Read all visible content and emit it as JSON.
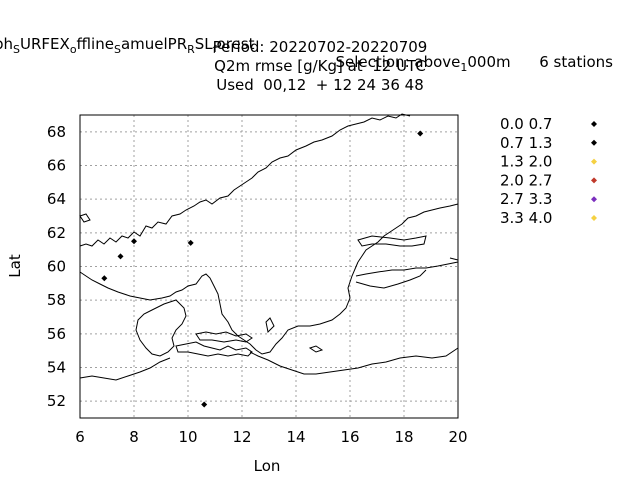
{
  "title": {
    "line1_left": "ph",
    "line1_run": "SURFEX",
    "line1_parts": [
      {
        "t": "ph",
        "sub": false
      },
      {
        "t": "S",
        "sub": true
      },
      {
        "t": "URFEX",
        "sub": false
      },
      {
        "t": "o",
        "sub": true
      },
      {
        "t": "ffline",
        "sub": false
      },
      {
        "t": "S",
        "sub": true
      },
      {
        "t": "amuelPR",
        "sub": false
      },
      {
        "t": "R",
        "sub": true
      },
      {
        "t": "SL",
        "sub": false
      },
      {
        "t": "f",
        "sub": true
      },
      {
        "t": "orest",
        "sub": false
      }
    ],
    "selection_parts": [
      {
        "t": "Selection: above",
        "sub": false
      },
      {
        "t": "1",
        "sub": true
      },
      {
        "t": "000m",
        "sub": false
      }
    ],
    "stations": "6 stations",
    "line2": "Period: 20220702-20220709",
    "line3": "Q2m rmse [g/Kg] at  12 UTC",
    "line4": "Used  00,12  + 12 24 36 48"
  },
  "axes": {
    "xlabel": "Lon",
    "ylabel": "Lat",
    "xlim": [
      6,
      20
    ],
    "ylim": [
      51,
      69
    ],
    "xticks": [
      "6",
      "8",
      "10",
      "12",
      "14",
      "16",
      "18",
      "20"
    ],
    "yticks": [
      "52",
      "54",
      "56",
      "58",
      "60",
      "62",
      "64",
      "66",
      "68"
    ],
    "grid": true
  },
  "legend": {
    "placement": "right",
    "entries": [
      {
        "label": "0.0 0.7",
        "color": "#000000"
      },
      {
        "label": "0.7 1.3",
        "color": "#000000"
      },
      {
        "label": "1.3 2.0",
        "color": "#f5d142"
      },
      {
        "label": "2.0 2.7",
        "color": "#c0392b"
      },
      {
        "label": "2.7 3.3",
        "color": "#7b2fbe"
      },
      {
        "label": "3.3 4.0",
        "color": "#f5d142"
      }
    ]
  },
  "chart_data": {
    "type": "scatter",
    "title": "Q2m rmse [g/Kg] at  12 UTC",
    "xlabel": "Lon",
    "ylabel": "Lat",
    "xlim": [
      6,
      20
    ],
    "ylim": [
      51,
      69
    ],
    "grid": true,
    "legend_placement": "right",
    "series": [
      {
        "name": "0.7 1.3",
        "color": "#000000",
        "points": [
          [
            6.9,
            59.3
          ],
          [
            7.5,
            60.6
          ],
          [
            8.0,
            61.5
          ],
          [
            10.1,
            61.4
          ],
          [
            18.6,
            67.9
          ],
          [
            10.6,
            51.8
          ]
        ]
      }
    ]
  }
}
